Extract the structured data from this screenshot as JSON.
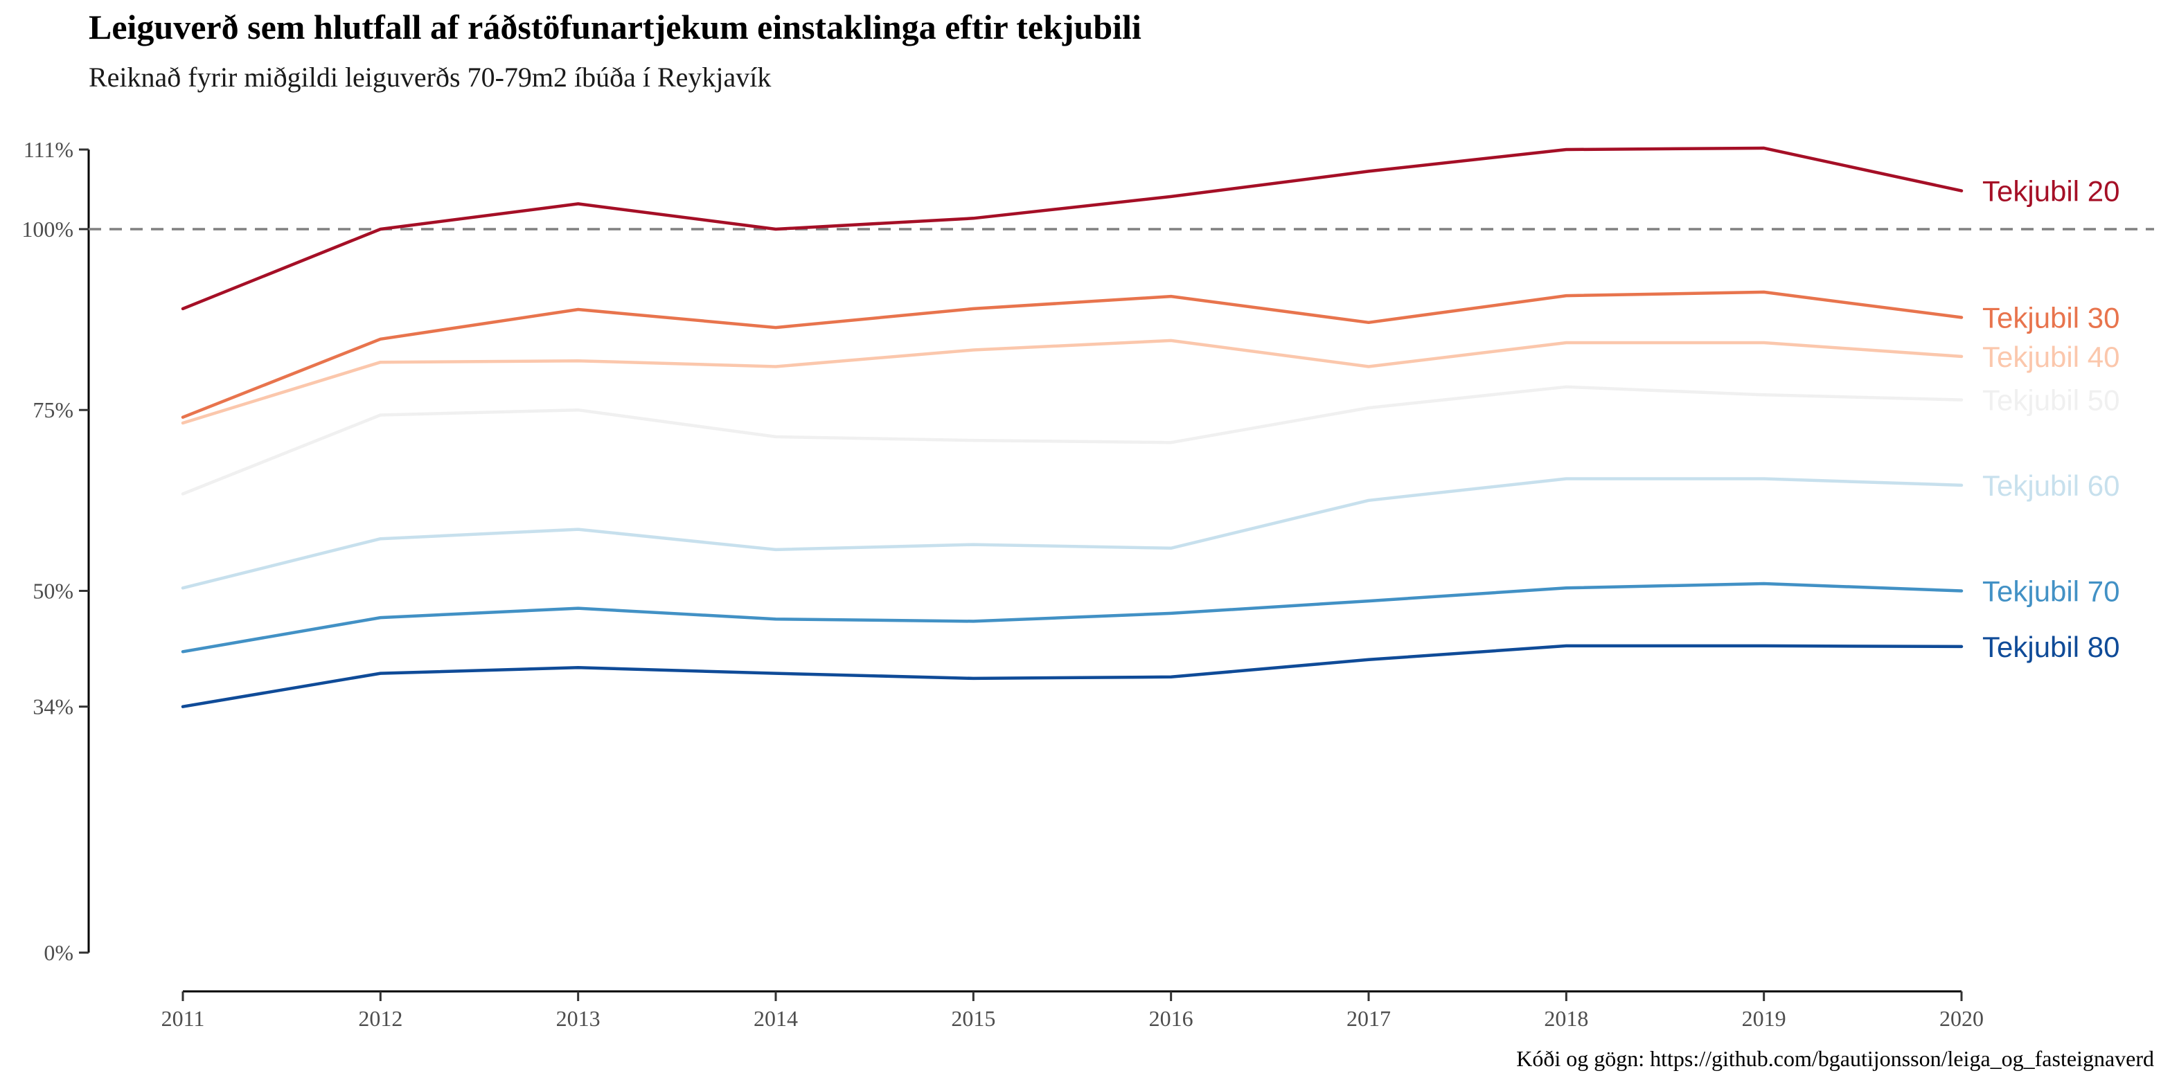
{
  "chart_data": {
    "type": "line",
    "title": "Leiguverð sem hlutfall af ráðstöfunartjekum einstaklinga eftir tekjubili",
    "subtitle": "Reiknað fyrir miðgildi leiguverðs 70-79m2 íbúða í Reykjavík",
    "caption": "Kóði og gögn: https://github.com/bgautijonsson/leiga_og_fasteignaverd",
    "xlabel": "",
    "ylabel": "",
    "x": [
      2011,
      2012,
      2013,
      2014,
      2015,
      2016,
      2017,
      2018,
      2019,
      2020
    ],
    "x_tick_labels": [
      "2011",
      "2012",
      "2013",
      "2014",
      "2015",
      "2016",
      "2017",
      "2018",
      "2019",
      "2020"
    ],
    "ylim": [
      0,
      111
    ],
    "y_ticks": [
      0,
      34,
      50,
      75,
      100,
      111
    ],
    "y_tick_labels": [
      "0%",
      "34%",
      "50%",
      "75%",
      "100%",
      "111%"
    ],
    "reference_line": {
      "y": 100,
      "style": "dashed",
      "color": "#808080"
    },
    "grid": false,
    "legend": "direct labels at line ends",
    "series": [
      {
        "name": "Tekjubil 20",
        "color": "#a50f26",
        "values": [
          89,
          100,
          103.5,
          100,
          101.5,
          104.5,
          108,
          111,
          111.2,
          105.3
        ]
      },
      {
        "name": "Tekjubil 30",
        "color": "#e8744d",
        "values": [
          74,
          84.8,
          88.9,
          86.4,
          89,
          90.7,
          87.1,
          90.8,
          91.3,
          87.8
        ]
      },
      {
        "name": "Tekjubil 40",
        "color": "#fbc7ac",
        "values": [
          73.2,
          81.6,
          81.8,
          81,
          83.3,
          84.6,
          81,
          84.3,
          84.3,
          82.4
        ]
      },
      {
        "name": "Tekjubil 50",
        "color": "#f0f0f0",
        "values": [
          63.4,
          74.3,
          75,
          71.3,
          70.8,
          70.5,
          75.3,
          78.2,
          77.1,
          76.4
        ]
      },
      {
        "name": "Tekjubil 60",
        "color": "#c7e0ed",
        "values": [
          50.4,
          57.2,
          58.5,
          55.7,
          56.4,
          55.9,
          62.5,
          65.5,
          65.5,
          64.6
        ]
      },
      {
        "name": "Tekjubil 70",
        "color": "#4291c5",
        "values": [
          41.6,
          46.3,
          47.6,
          46.1,
          45.8,
          46.9,
          48.6,
          50.4,
          51,
          50
        ]
      },
      {
        "name": "Tekjubil 80",
        "color": "#0f4b98",
        "values": [
          34,
          38.6,
          39.4,
          38.6,
          37.9,
          38.1,
          40.5,
          42.4,
          42.4,
          42.3
        ]
      }
    ]
  }
}
